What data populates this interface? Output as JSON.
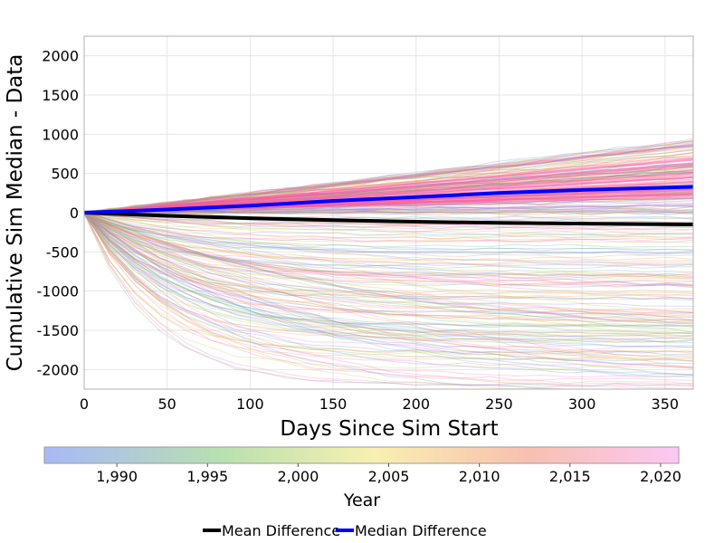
{
  "chart_data": {
    "type": "line",
    "title": "",
    "xlabel": "Days Since Sim Start",
    "ylabel": "Cumulative Sim Median - Data",
    "xlim": [
      0,
      367
    ],
    "ylim": [
      -2250,
      2250
    ],
    "x_ticks": [
      0,
      50,
      100,
      150,
      200,
      250,
      300,
      350
    ],
    "y_ticks": [
      -2000,
      -1500,
      -1000,
      -500,
      0,
      500,
      1000,
      1500,
      2000
    ],
    "grid": true,
    "legend_position": "bottom",
    "series": [
      {
        "name": "Mean Difference",
        "color": "#000000",
        "x": [
          0,
          50,
          100,
          150,
          200,
          250,
          300,
          367
        ],
        "y": [
          0,
          -40,
          -70,
          -95,
          -115,
          -130,
          -140,
          -150
        ]
      },
      {
        "name": "Median Difference",
        "color": "#0000ff",
        "x": [
          0,
          50,
          100,
          150,
          200,
          250,
          300,
          367
        ],
        "y": [
          0,
          40,
          90,
          150,
          200,
          250,
          290,
          330
        ]
      }
    ],
    "colorbar": {
      "label": "Year",
      "range": [
        1986,
        2021
      ],
      "ticks": [
        1990,
        1995,
        2000,
        2005,
        2010,
        2015,
        2020
      ],
      "tick_labels": [
        "1,990",
        "1,995",
        "2,000",
        "2,005",
        "2,010",
        "2,015",
        "2,020"
      ],
      "colors": [
        "#a8b8f8",
        "#b8e0b0",
        "#f8f0b0",
        "#f8c0b0",
        "#fcc8f4"
      ]
    }
  }
}
